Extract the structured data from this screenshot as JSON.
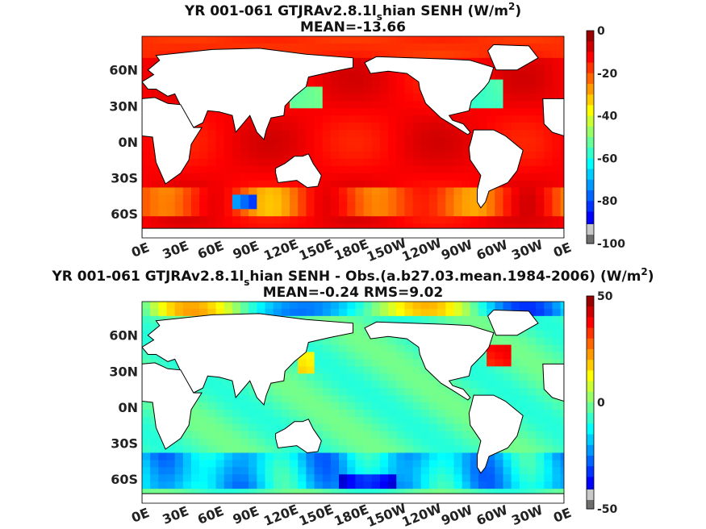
{
  "chart_data": [
    {
      "type": "heatmap",
      "title": "YR 001-061 GTJRAv2.8.1l_s hian  SENH (W/m^2)",
      "title_parts": {
        "main": "YR 001-061 GTJRAv2.8.1l",
        "sub": "s",
        "rest": "hian  SENH (W/m",
        "sup": "2",
        "close": ")"
      },
      "subtitle": "MEAN=-13.66",
      "x_ticks": [
        "0E",
        "30E",
        "60E",
        "90E",
        "120E",
        "150E",
        "180E",
        "150W",
        "120W",
        "90W",
        "60W",
        "30W",
        "0E"
      ],
      "y_ticks": [
        "60N",
        "30N",
        "0N",
        "30S",
        "60S"
      ],
      "xlim": [
        0,
        360
      ],
      "ylim": [
        -80,
        88
      ],
      "colorbar": {
        "min": -100,
        "max": 0,
        "ticks": [
          "0",
          "-20",
          "-40",
          "-60",
          "-80",
          "-100"
        ]
      }
    },
    {
      "type": "heatmap",
      "title": "YR 001-061 GTJRAv2.8.1l_s hian SENH - Obs.(a.b27.03.mean.1984-2006) (W/m^2)",
      "title_parts": {
        "main": "YR 001-061 GTJRAv2.8.1l",
        "sub": "s",
        "rest": "hian SENH - Obs.(a.b27.03.mean.1984-2006) (W/m",
        "sup": "2",
        "close": ")"
      },
      "subtitle": "MEAN=-0.24 RMS=9.02",
      "x_ticks": [
        "0E",
        "30E",
        "60E",
        "90E",
        "120E",
        "150E",
        "180E",
        "150W",
        "120W",
        "90W",
        "60W",
        "30W",
        "0E"
      ],
      "y_ticks": [
        "60N",
        "30N",
        "0N",
        "30S",
        "60S"
      ],
      "xlim": [
        0,
        360
      ],
      "ylim": [
        -80,
        88
      ],
      "colorbar": {
        "min": -50,
        "max": 50,
        "ticks": [
          "50",
          "0",
          "-50"
        ]
      }
    }
  ]
}
